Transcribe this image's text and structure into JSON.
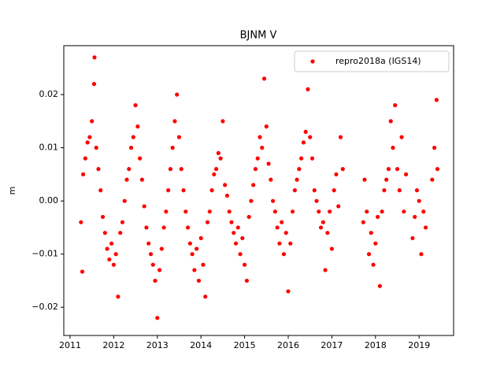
{
  "chart_data": {
    "type": "scatter",
    "title": "BJNM V",
    "y_label": "m",
    "xlim": [
      2010.856,
      2019.79
    ],
    "ylim": [
      -0.0253,
      0.0292
    ],
    "xticks": [
      2011,
      2012,
      2013,
      2014,
      2015,
      2016,
      2017,
      2018,
      2019
    ],
    "yticks": [
      {
        "value": -0.02,
        "label": "−0.02"
      },
      {
        "value": -0.01,
        "label": "−0.01"
      },
      {
        "value": 0,
        "label": "0.00"
      },
      0.01,
      0.02
    ],
    "legend": "upper right",
    "x": [
      2011.25,
      2011.28,
      2011.3,
      2011.35,
      2011.4,
      2011.45,
      2011.5,
      2011.55,
      2011.56,
      2011.6,
      2011.65,
      2011.7,
      2011.75,
      2011.8,
      2011.85,
      2011.9,
      2011.95,
      2012.0,
      2012.05,
      2012.1,
      2012.15,
      2012.2,
      2012.25,
      2012.3,
      2012.35,
      2012.4,
      2012.45,
      2012.5,
      2012.55,
      2012.6,
      2012.65,
      2012.7,
      2012.75,
      2012.8,
      2012.85,
      2012.9,
      2012.95,
      2013.0,
      2013.05,
      2013.1,
      2013.15,
      2013.2,
      2013.25,
      2013.3,
      2013.35,
      2013.4,
      2013.45,
      2013.5,
      2013.55,
      2013.6,
      2013.65,
      2013.7,
      2013.75,
      2013.8,
      2013.85,
      2013.9,
      2013.95,
      2014.0,
      2014.05,
      2014.1,
      2014.15,
      2014.2,
      2014.25,
      2014.3,
      2014.35,
      2014.4,
      2014.45,
      2014.5,
      2014.55,
      2014.6,
      2014.65,
      2014.7,
      2014.75,
      2014.8,
      2014.85,
      2014.9,
      2014.95,
      2015.0,
      2015.05,
      2015.1,
      2015.15,
      2015.2,
      2015.25,
      2015.3,
      2015.35,
      2015.4,
      2015.45,
      2015.5,
      2015.55,
      2015.6,
      2015.65,
      2015.7,
      2015.75,
      2015.8,
      2015.85,
      2015.9,
      2015.95,
      2016.0,
      2016.05,
      2016.1,
      2016.15,
      2016.2,
      2016.25,
      2016.3,
      2016.35,
      2016.4,
      2016.45,
      2016.5,
      2016.55,
      2016.6,
      2016.65,
      2016.7,
      2016.75,
      2016.8,
      2016.85,
      2016.9,
      2016.95,
      2017.0,
      2017.05,
      2017.1,
      2017.15,
      2017.2,
      2017.25,
      2017.72,
      2017.75,
      2017.8,
      2017.85,
      2017.9,
      2017.95,
      2018.0,
      2018.05,
      2018.1,
      2018.15,
      2018.2,
      2018.25,
      2018.3,
      2018.35,
      2018.4,
      2018.45,
      2018.5,
      2018.55,
      2018.6,
      2018.65,
      2018.7,
      2018.85,
      2018.9,
      2018.95,
      2019.0,
      2019.05,
      2019.1,
      2019.15,
      2019.3,
      2019.35,
      2019.4,
      2019.42
    ],
    "series": [
      {
        "name": "repro2018a (IGS14)",
        "color": "#ff0000",
        "values": [
          -0.004,
          -0.0133,
          0.005,
          0.008,
          0.011,
          0.012,
          0.015,
          0.022,
          0.027,
          0.01,
          0.006,
          0.002,
          -0.003,
          -0.006,
          -0.009,
          -0.011,
          -0.008,
          -0.012,
          -0.01,
          -0.018,
          -0.006,
          -0.004,
          0.0,
          0.004,
          0.006,
          0.01,
          0.012,
          0.018,
          0.014,
          0.008,
          0.004,
          -0.001,
          -0.005,
          -0.008,
          -0.01,
          -0.012,
          -0.015,
          -0.022,
          -0.013,
          -0.009,
          -0.005,
          -0.002,
          0.002,
          0.006,
          0.01,
          0.015,
          0.02,
          0.012,
          0.006,
          0.002,
          -0.002,
          -0.005,
          -0.008,
          -0.01,
          -0.013,
          -0.009,
          -0.015,
          -0.007,
          -0.012,
          -0.018,
          -0.004,
          -0.002,
          0.002,
          0.005,
          0.006,
          0.009,
          0.008,
          0.015,
          0.003,
          0.001,
          -0.002,
          -0.004,
          -0.006,
          -0.008,
          -0.005,
          -0.01,
          -0.007,
          -0.012,
          -0.015,
          -0.003,
          0.0,
          0.003,
          0.006,
          0.008,
          0.012,
          0.01,
          0.023,
          0.014,
          0.007,
          0.004,
          0.0,
          -0.002,
          -0.005,
          -0.008,
          -0.004,
          -0.01,
          -0.006,
          -0.017,
          -0.008,
          -0.002,
          0.002,
          0.004,
          0.006,
          0.008,
          0.011,
          0.013,
          0.021,
          0.012,
          0.008,
          0.002,
          0.0,
          -0.002,
          -0.005,
          -0.004,
          -0.013,
          -0.006,
          -0.002,
          -0.009,
          0.002,
          0.005,
          -0.001,
          0.012,
          0.006,
          -0.004,
          0.004,
          -0.002,
          -0.01,
          -0.006,
          -0.012,
          -0.008,
          -0.003,
          -0.016,
          -0.002,
          0.002,
          0.004,
          0.006,
          0.015,
          0.01,
          0.018,
          0.006,
          0.002,
          0.012,
          -0.002,
          0.005,
          -0.007,
          -0.003,
          0.002,
          0.0,
          -0.01,
          -0.002,
          -0.005,
          0.004,
          0.01,
          0.019,
          0.006
        ]
      }
    ]
  }
}
